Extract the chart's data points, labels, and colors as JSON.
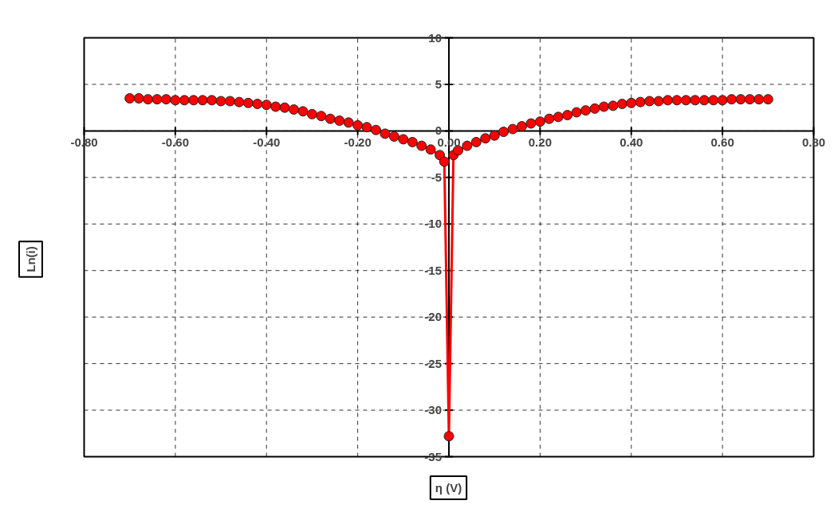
{
  "chart_data": {
    "type": "line",
    "xlabel": "η (V)",
    "ylabel": "Ln(i)",
    "x": [
      -0.7,
      -0.68,
      -0.66,
      -0.64,
      -0.62,
      -0.6,
      -0.58,
      -0.56,
      -0.54,
      -0.52,
      -0.5,
      -0.48,
      -0.46,
      -0.44,
      -0.42,
      -0.4,
      -0.38,
      -0.36,
      -0.34,
      -0.32,
      -0.3,
      -0.28,
      -0.26,
      -0.24,
      -0.22,
      -0.2,
      -0.18,
      -0.16,
      -0.14,
      -0.12,
      -0.1,
      -0.08,
      -0.06,
      -0.04,
      -0.02,
      -0.01,
      0,
      0.01,
      0.02,
      0.04,
      0.06,
      0.08,
      0.1,
      0.12,
      0.14,
      0.16,
      0.18,
      0.2,
      0.22,
      0.24,
      0.26,
      0.28,
      0.3,
      0.32,
      0.34,
      0.36,
      0.38,
      0.4,
      0.42,
      0.44,
      0.46,
      0.48,
      0.5,
      0.52,
      0.54,
      0.56,
      0.58,
      0.6,
      0.62,
      0.64,
      0.66,
      0.68,
      0.7
    ],
    "series": [
      {
        "color": "#ff0000",
        "values": [
          3.5,
          3.5,
          3.4,
          3.4,
          3.4,
          3.3,
          3.3,
          3.3,
          3.3,
          3.3,
          3.2,
          3.2,
          3.1,
          3.0,
          2.9,
          2.8,
          2.6,
          2.5,
          2.3,
          2.1,
          1.8,
          1.6,
          1.3,
          1.1,
          0.9,
          0.6,
          0.4,
          0.1,
          -0.3,
          -0.6,
          -0.9,
          -1.2,
          -1.6,
          -2.0,
          -2.6,
          -3.3,
          -32.8,
          -2.6,
          -2.1,
          -1.6,
          -1.2,
          -0.8,
          -0.5,
          -0.1,
          0.2,
          0.5,
          0.8,
          1.0,
          1.3,
          1.5,
          1.7,
          2.0,
          2.2,
          2.4,
          2.6,
          2.7,
          2.9,
          3.0,
          3.1,
          3.2,
          3.2,
          3.3,
          3.3,
          3.3,
          3.3,
          3.3,
          3.3,
          3.3,
          3.4,
          3.4,
          3.4,
          3.4,
          3.4
        ]
      }
    ],
    "marker": "circle",
    "line_style": "solid",
    "grid": true,
    "xlim": [
      -0.8,
      0.8
    ],
    "ylim": [
      -35,
      10
    ],
    "xticks": [
      {
        "value": -0.8,
        "label": "-0.80"
      },
      {
        "value": -0.6,
        "label": "-0.60"
      },
      {
        "value": -0.4,
        "label": "-0.40"
      },
      {
        "value": -0.2,
        "label": "-0.20"
      },
      {
        "value": 0,
        "label": "0.00"
      },
      {
        "value": 0.2,
        "label": "0.20"
      },
      {
        "value": 0.4,
        "label": "0.40"
      },
      {
        "value": 0.6,
        "label": "0.60"
      },
      {
        "value": 0.8,
        "label": "0.80"
      }
    ],
    "yticks": [
      -35,
      -30,
      -25,
      -20,
      -15,
      -10,
      -5,
      0,
      5,
      10
    ]
  }
}
